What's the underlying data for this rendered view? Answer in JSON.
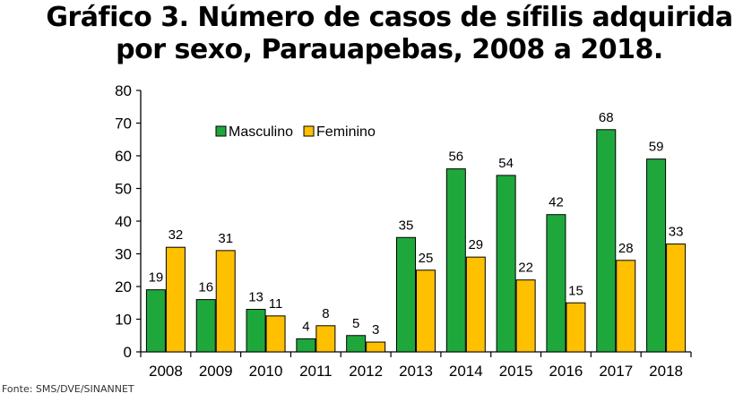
{
  "header": {
    "title_line1": "Gráfico 3. Número de casos de sífilis adquirida",
    "title_line2": "por sexo, Parauapebas, 2008 a 2018."
  },
  "footer": {
    "source": "Fonte: SMS/DVE/SINANNET"
  },
  "chart_data": {
    "type": "bar",
    "title": "Gráfico 3. Número de casos de sífilis adquirida por sexo, Parauapebas, 2008 a 2018.",
    "categories": [
      "2008",
      "2009",
      "2010",
      "2011",
      "2012",
      "2013",
      "2014",
      "2015",
      "2016",
      "2017",
      "2018"
    ],
    "series": [
      {
        "name": "Masculino",
        "color": "#1ea83c",
        "values": [
          19,
          16,
          13,
          4,
          5,
          35,
          56,
          54,
          42,
          68,
          59
        ]
      },
      {
        "name": "Feminino",
        "color": "#ffc000",
        "values": [
          32,
          31,
          11,
          8,
          3,
          25,
          29,
          22,
          15,
          28,
          33
        ]
      }
    ],
    "ylim": [
      0,
      80
    ],
    "yticks": [
      0,
      10,
      20,
      30,
      40,
      50,
      60,
      70,
      80
    ],
    "data_labels": true,
    "legend_placement": "top-left",
    "grid": false
  }
}
